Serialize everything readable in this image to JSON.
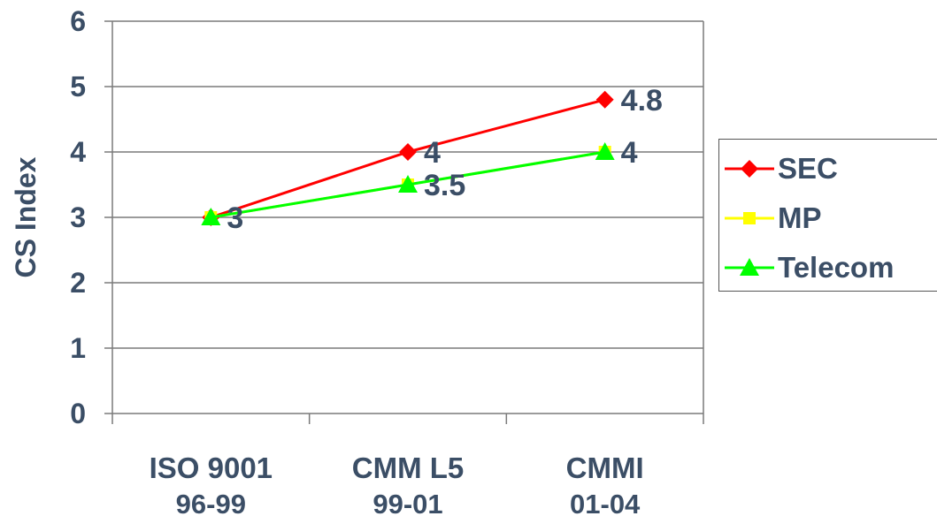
{
  "chart_data": {
    "type": "line",
    "ylabel": "CS Index",
    "ylim": [
      0,
      6
    ],
    "yticks": [
      "0",
      "1",
      "2",
      "3",
      "4",
      "5",
      "6"
    ],
    "categories": [
      {
        "line1": "ISO 9001",
        "line2": "96-99"
      },
      {
        "line1": "CMM L5",
        "line2": "99-01"
      },
      {
        "line1": "CMMI",
        "line2": "01-04"
      }
    ],
    "series": [
      {
        "name": "SEC",
        "color": "#ff0000",
        "marker": "diamond",
        "values": [
          3,
          4,
          4.8
        ],
        "labels": [
          "",
          "4",
          "4.8"
        ]
      },
      {
        "name": "MP",
        "color": "#ffff00",
        "marker": "square",
        "values": [
          3,
          3.5,
          4
        ],
        "labels": [
          "",
          "",
          ""
        ]
      },
      {
        "name": "Telecom",
        "color": "#00ff00",
        "marker": "triangle",
        "values": [
          3,
          3.5,
          4
        ],
        "labels": [
          "3",
          "3.5",
          "4"
        ]
      }
    ],
    "grid": true,
    "legend_position": "right"
  }
}
